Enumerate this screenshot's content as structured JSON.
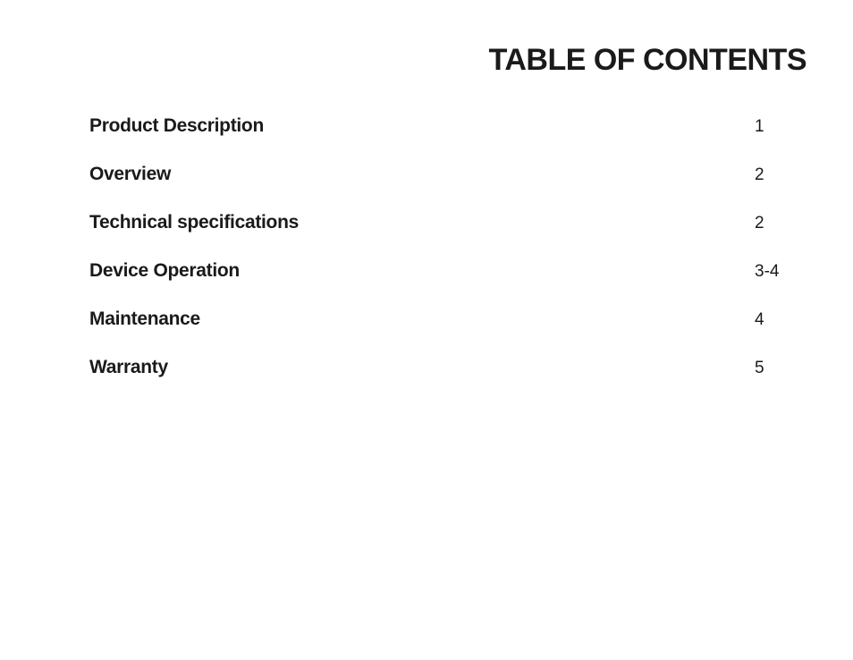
{
  "title": "TABLE OF CONTENTS",
  "entries": [
    {
      "label": "Product Description",
      "page": "1"
    },
    {
      "label": "Overview",
      "page": "2"
    },
    {
      "label": "Technical specifications",
      "page": "2"
    },
    {
      "label": "Device Operation",
      "page": "3-4"
    },
    {
      "label": "Maintenance",
      "page": "4"
    },
    {
      "label": "Warranty",
      "page": "5"
    }
  ],
  "colors": {
    "background": "#ffffff",
    "text": "#1a1a1a"
  },
  "typography": {
    "title_fontsize": 34,
    "title_weight": 900,
    "label_fontsize": 21,
    "label_weight": 700,
    "page_fontsize": 19,
    "page_weight": 300
  }
}
